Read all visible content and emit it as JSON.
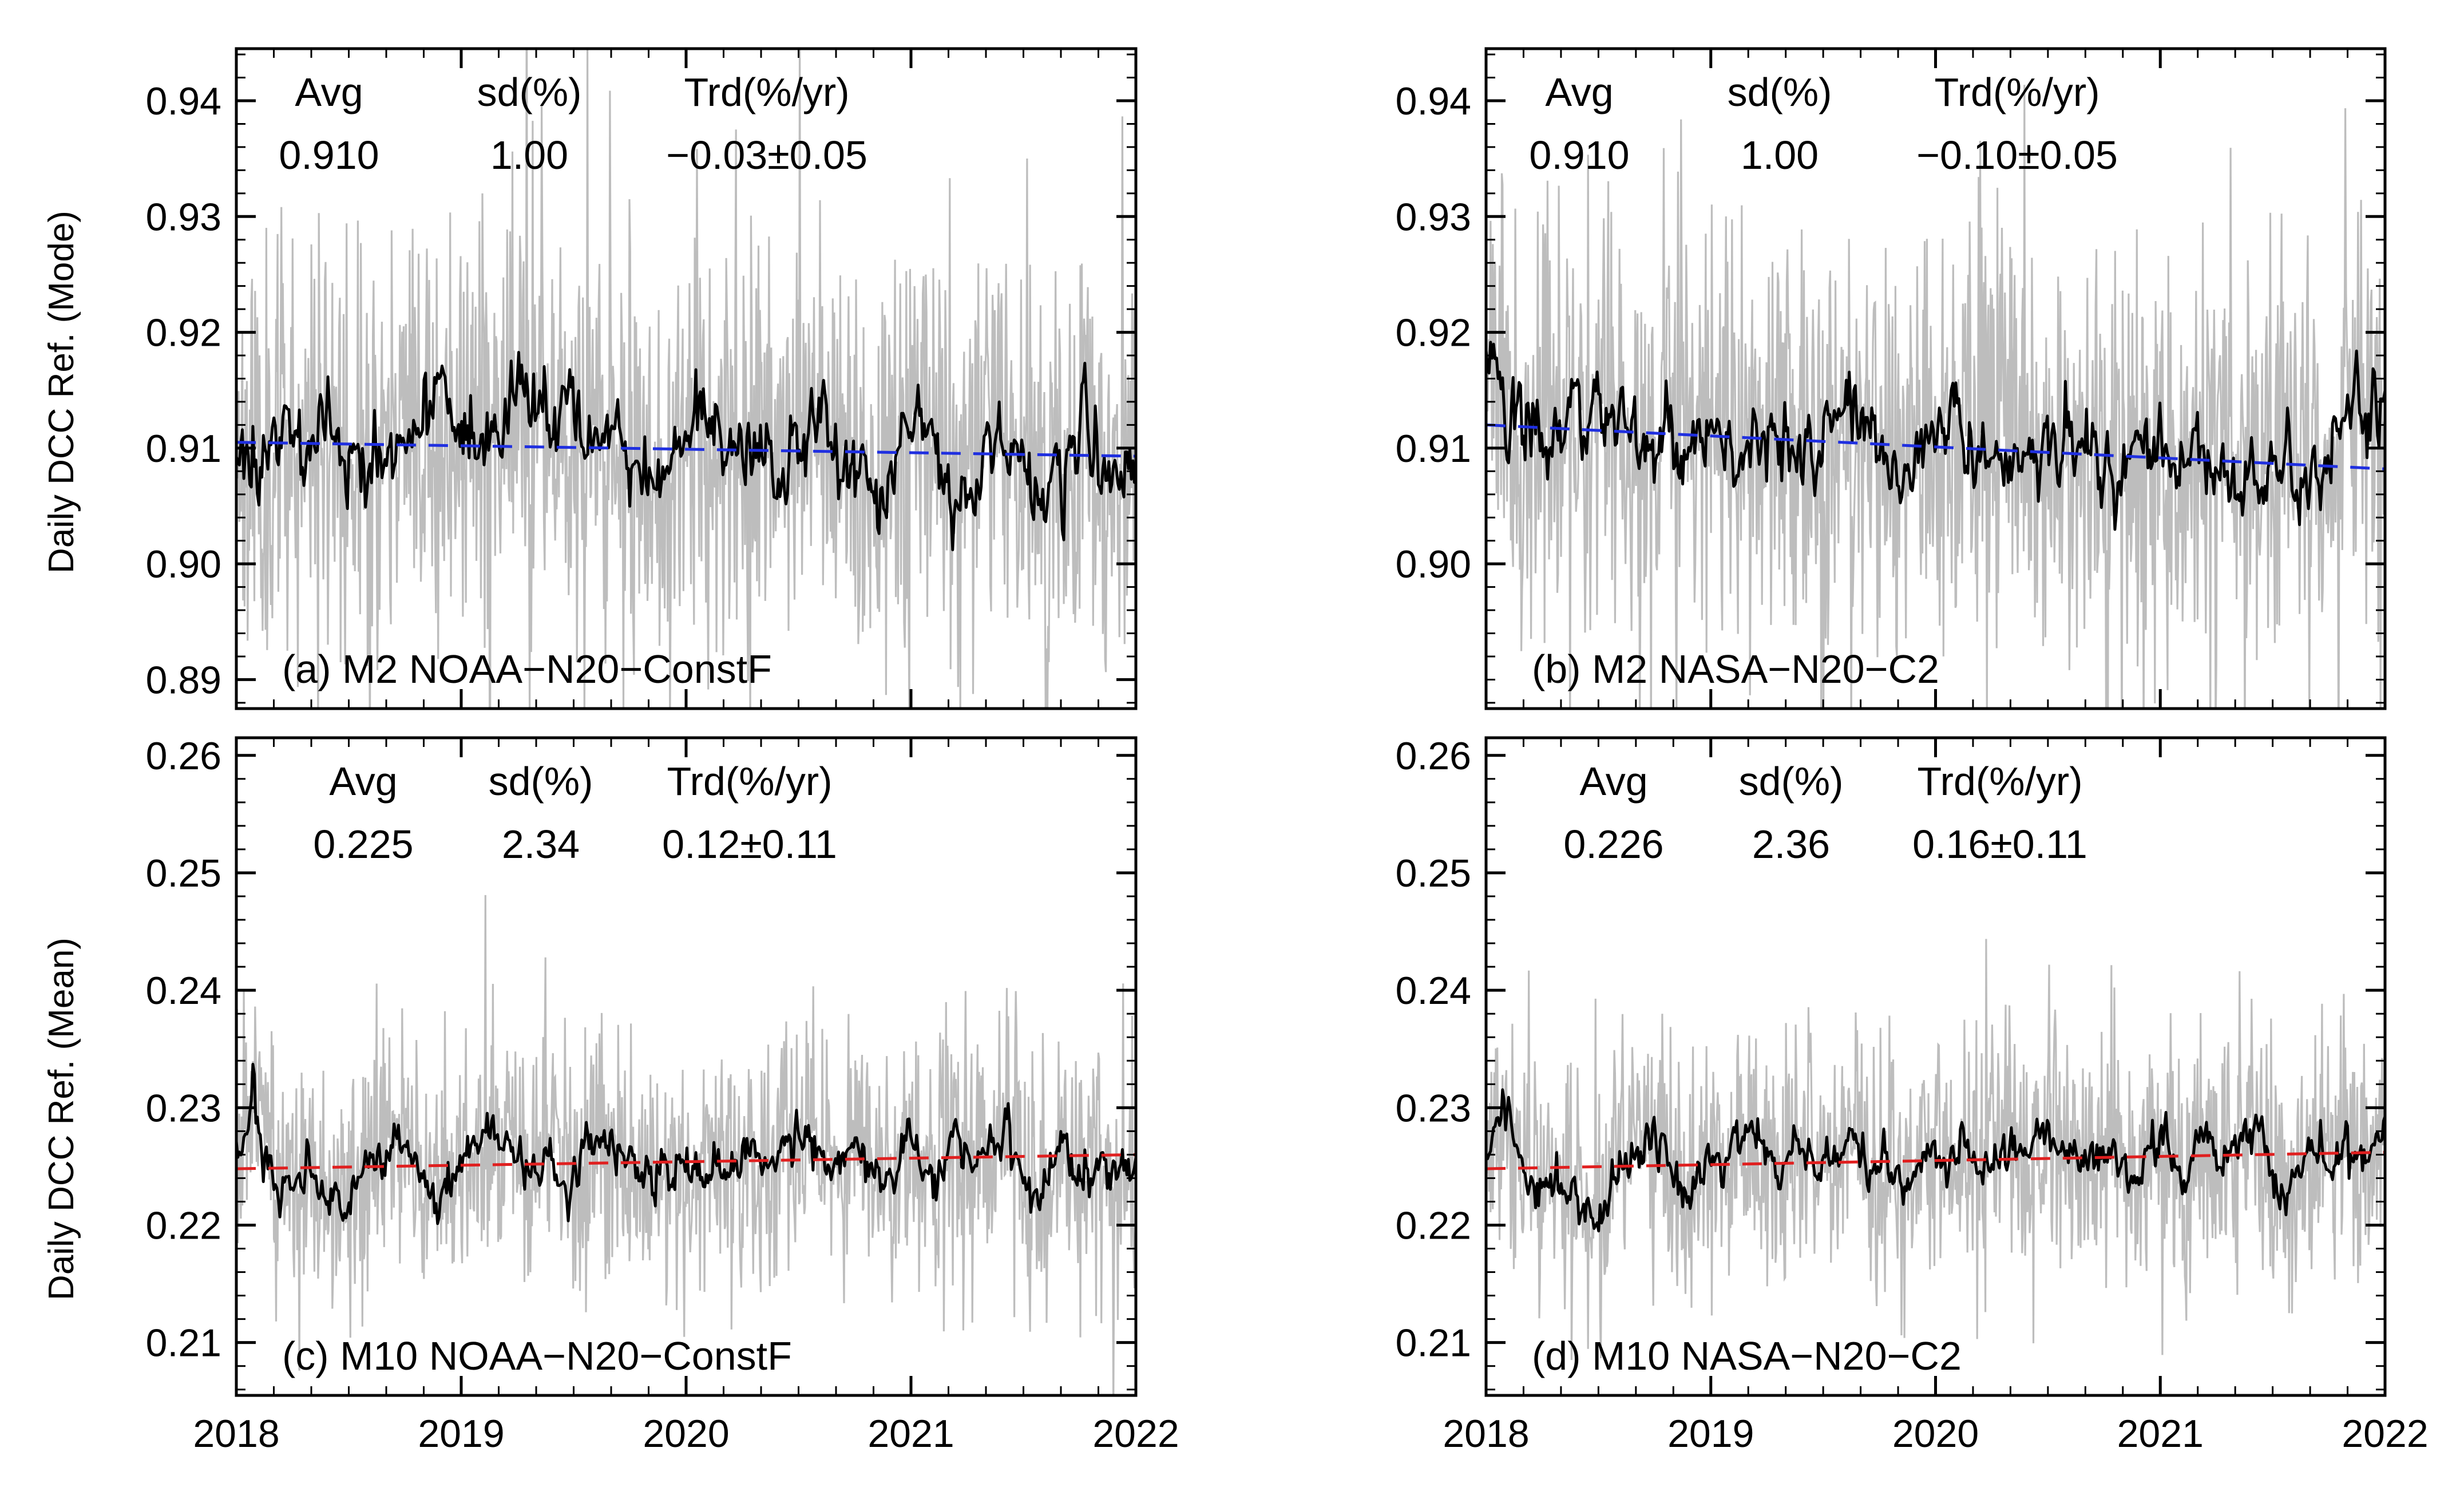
{
  "figure": {
    "ylabel_top": "Daily DCC Ref. (Mode)",
    "ylabel_bottom": "Daily DCC Ref. (Mean)",
    "x_tick_labels": [
      "2018",
      "2019",
      "2020",
      "2021",
      "2022"
    ]
  },
  "colors": {
    "daily": "#bdbdbd",
    "smoothed": "#000000",
    "trend_M2": "#1f2fe0",
    "trend_M10": "#e01f1f"
  },
  "chart_data": [
    {
      "type": "line",
      "panel_label": "(a) M2 NOAA−N20−ConstF",
      "xlabel": "",
      "ylabel": "Daily DCC Ref. (Mode)",
      "xlim": [
        2018,
        2022
      ],
      "ylim": [
        0.8875,
        0.9445
      ],
      "yticks": [
        0.89,
        0.9,
        0.91,
        0.92,
        0.93,
        0.94
      ],
      "y_tick_labels": [
        "0.89",
        "0.90",
        "0.91",
        "0.92",
        "0.93",
        "0.94"
      ],
      "x_ticks": [
        2018,
        2019,
        2020,
        2021,
        2022
      ],
      "stats": {
        "avg_label": "Avg",
        "sd_label": "sd(%)",
        "trd_label": "Trd(%/yr)",
        "avg": "0.910",
        "sd": "1.00",
        "trd": "−0.03±0.05"
      },
      "mean": 0.91,
      "sd_abs": 0.0091,
      "smooth_sd": 0.0036,
      "trend": {
        "start": 0.9105,
        "end": 0.9093
      },
      "seed": 11,
      "series": [
        {
          "name": "daily",
          "style": "gray",
          "values_desc": "noisy daily values around 0.910"
        },
        {
          "name": "smoothed",
          "style": "black",
          "values": [
            0.9118,
            0.9082,
            0.9095,
            0.911,
            0.9102,
            0.9124,
            0.9089,
            0.9078,
            0.9096,
            0.9112,
            0.912,
            0.9131,
            0.9115,
            0.9108,
            0.9126,
            0.9134,
            0.9128,
            0.914,
            0.9122,
            0.9102,
            0.911,
            0.9093,
            0.908,
            0.9069,
            0.9104,
            0.9116,
            0.9128,
            0.9112,
            0.9092,
            0.9105,
            0.9088,
            0.9113,
            0.9122,
            0.9097,
            0.9062,
            0.9071,
            0.9118,
            0.9132,
            0.9102,
            0.9071,
            0.9073,
            0.9109,
            0.911,
            0.9098,
            0.9065,
            0.9083,
            0.9115,
            0.9088,
            0.906,
            0.9094
          ]
        },
        {
          "name": "trend",
          "style": "dashed"
        }
      ]
    },
    {
      "type": "line",
      "panel_label": "(b) M2 NASA−N20−C2",
      "xlabel": "",
      "ylabel": "",
      "xlim": [
        2018,
        2022
      ],
      "ylim": [
        0.8875,
        0.9445
      ],
      "yticks": [
        0.9,
        0.91,
        0.92,
        0.93,
        0.94
      ],
      "y_tick_labels": [
        "0.90",
        "0.91",
        "0.92",
        "0.93",
        "0.94"
      ],
      "x_ticks": [
        2018,
        2019,
        2020,
        2021,
        2022
      ],
      "stats": {
        "avg_label": "Avg",
        "sd_label": "sd(%)",
        "trd_label": "Trd(%/yr)",
        "avg": "0.910",
        "sd": "1.00",
        "trd": "−0.10±0.05"
      },
      "mean": 0.91,
      "sd_abs": 0.0091,
      "smooth_sd": 0.0036,
      "trend": {
        "start": 0.912,
        "end": 0.9082
      },
      "seed": 23,
      "series": [
        {
          "name": "daily",
          "style": "gray",
          "values_desc": "noisy daily values around 0.910"
        },
        {
          "name": "smoothed",
          "style": "black",
          "values": [
            0.917,
            0.9118,
            0.9102,
            0.913,
            0.9108,
            0.914,
            0.9126,
            0.9112,
            0.9104,
            0.9092,
            0.9115,
            0.91,
            0.9118,
            0.9109,
            0.9098,
            0.9122,
            0.9114,
            0.9102,
            0.9096,
            0.9108,
            0.913,
            0.9112,
            0.9096,
            0.9086,
            0.91,
            0.912,
            0.9108,
            0.909,
            0.9102,
            0.9092,
            0.9078,
            0.9094,
            0.9112,
            0.9098,
            0.907,
            0.9082,
            0.9102,
            0.9084,
            0.9072,
            0.908,
            0.9095,
            0.907,
            0.9052,
            0.9088,
            0.9076,
            0.906,
            0.9096,
            0.914,
            0.913,
            0.9118
          ]
        },
        {
          "name": "trend",
          "style": "dashed"
        }
      ]
    },
    {
      "type": "line",
      "panel_label": "(c) M10 NOAA−N20−ConstF",
      "xlabel": "",
      "ylabel": "Daily DCC Ref. (Mean)",
      "xlim": [
        2018,
        2022
      ],
      "ylim": [
        0.2055,
        0.2615
      ],
      "yticks": [
        0.21,
        0.22,
        0.23,
        0.24,
        0.25,
        0.26
      ],
      "y_tick_labels": [
        "0.21",
        "0.22",
        "0.23",
        "0.24",
        "0.25",
        "0.26"
      ],
      "x_ticks": [
        2018,
        2019,
        2020,
        2021,
        2022
      ],
      "stats": {
        "avg_label": "Avg",
        "sd_label": "sd(%)",
        "trd_label": "Trd(%/yr)",
        "avg": "0.225",
        "sd": "2.34",
        "trd": "0.12±0.11"
      },
      "mean": 0.225,
      "sd_abs": 0.0053,
      "smooth_sd": 0.0021,
      "trend": {
        "start": 0.2248,
        "end": 0.226
      },
      "seed": 37,
      "series": [
        {
          "name": "daily",
          "style": "gray",
          "values_desc": "noisy daily values around 0.225"
        },
        {
          "name": "smoothed",
          "style": "black",
          "values": [
            0.2258,
            0.23,
            0.2238,
            0.2232,
            0.2246,
            0.2222,
            0.2205,
            0.2238,
            0.2262,
            0.2274,
            0.2248,
            0.222,
            0.2244,
            0.2262,
            0.228,
            0.2268,
            0.225,
            0.2262,
            0.224,
            0.2258,
            0.227,
            0.225,
            0.2238,
            0.2232,
            0.2258,
            0.2244,
            0.2258,
            0.224,
            0.2262,
            0.2248,
            0.2282,
            0.227,
            0.225,
            0.2246,
            0.2262,
            0.224,
            0.2248,
            0.2262,
            0.2238,
            0.2272,
            0.225,
            0.2262,
            0.2282,
            0.2226,
            0.2232,
            0.2266,
            0.2246,
            0.226,
            0.225,
            0.2265
          ]
        },
        {
          "name": "trend",
          "style": "dashed"
        }
      ]
    },
    {
      "type": "line",
      "panel_label": "(d) M10 NASA−N20−C2",
      "xlabel": "",
      "ylabel": "",
      "xlim": [
        2018,
        2022
      ],
      "ylim": [
        0.2055,
        0.2615
      ],
      "yticks": [
        0.21,
        0.22,
        0.23,
        0.24,
        0.25,
        0.26
      ],
      "y_tick_labels": [
        "0.21",
        "0.22",
        "0.23",
        "0.24",
        "0.25",
        "0.26"
      ],
      "x_ticks": [
        2018,
        2019,
        2020,
        2021,
        2022
      ],
      "stats": {
        "avg_label": "Avg",
        "sd_label": "sd(%)",
        "trd_label": "Trd(%/yr)",
        "avg": "0.226",
        "sd": "2.36",
        "trd": "0.16±0.11"
      },
      "mean": 0.226,
      "sd_abs": 0.0053,
      "smooth_sd": 0.0021,
      "trend": {
        "start": 0.2248,
        "end": 0.2262
      },
      "seed": 53,
      "series": [
        {
          "name": "daily",
          "style": "gray",
          "values_desc": "noisy daily values around 0.226"
        },
        {
          "name": "smoothed",
          "style": "black",
          "values": [
            0.2255,
            0.23,
            0.224,
            0.2236,
            0.2244,
            0.222,
            0.2206,
            0.224,
            0.226,
            0.2278,
            0.225,
            0.2222,
            0.2246,
            0.2262,
            0.2282,
            0.227,
            0.2252,
            0.2264,
            0.2244,
            0.226,
            0.2272,
            0.2252,
            0.224,
            0.2236,
            0.226,
            0.2248,
            0.2262,
            0.2244,
            0.2266,
            0.225,
            0.2284,
            0.2272,
            0.2254,
            0.225,
            0.2266,
            0.2244,
            0.2252,
            0.2266,
            0.2242,
            0.2276,
            0.2254,
            0.2266,
            0.2286,
            0.223,
            0.2236,
            0.227,
            0.225,
            0.2264,
            0.2256,
            0.2292
          ]
        },
        {
          "name": "trend",
          "style": "dashed"
        }
      ]
    }
  ]
}
